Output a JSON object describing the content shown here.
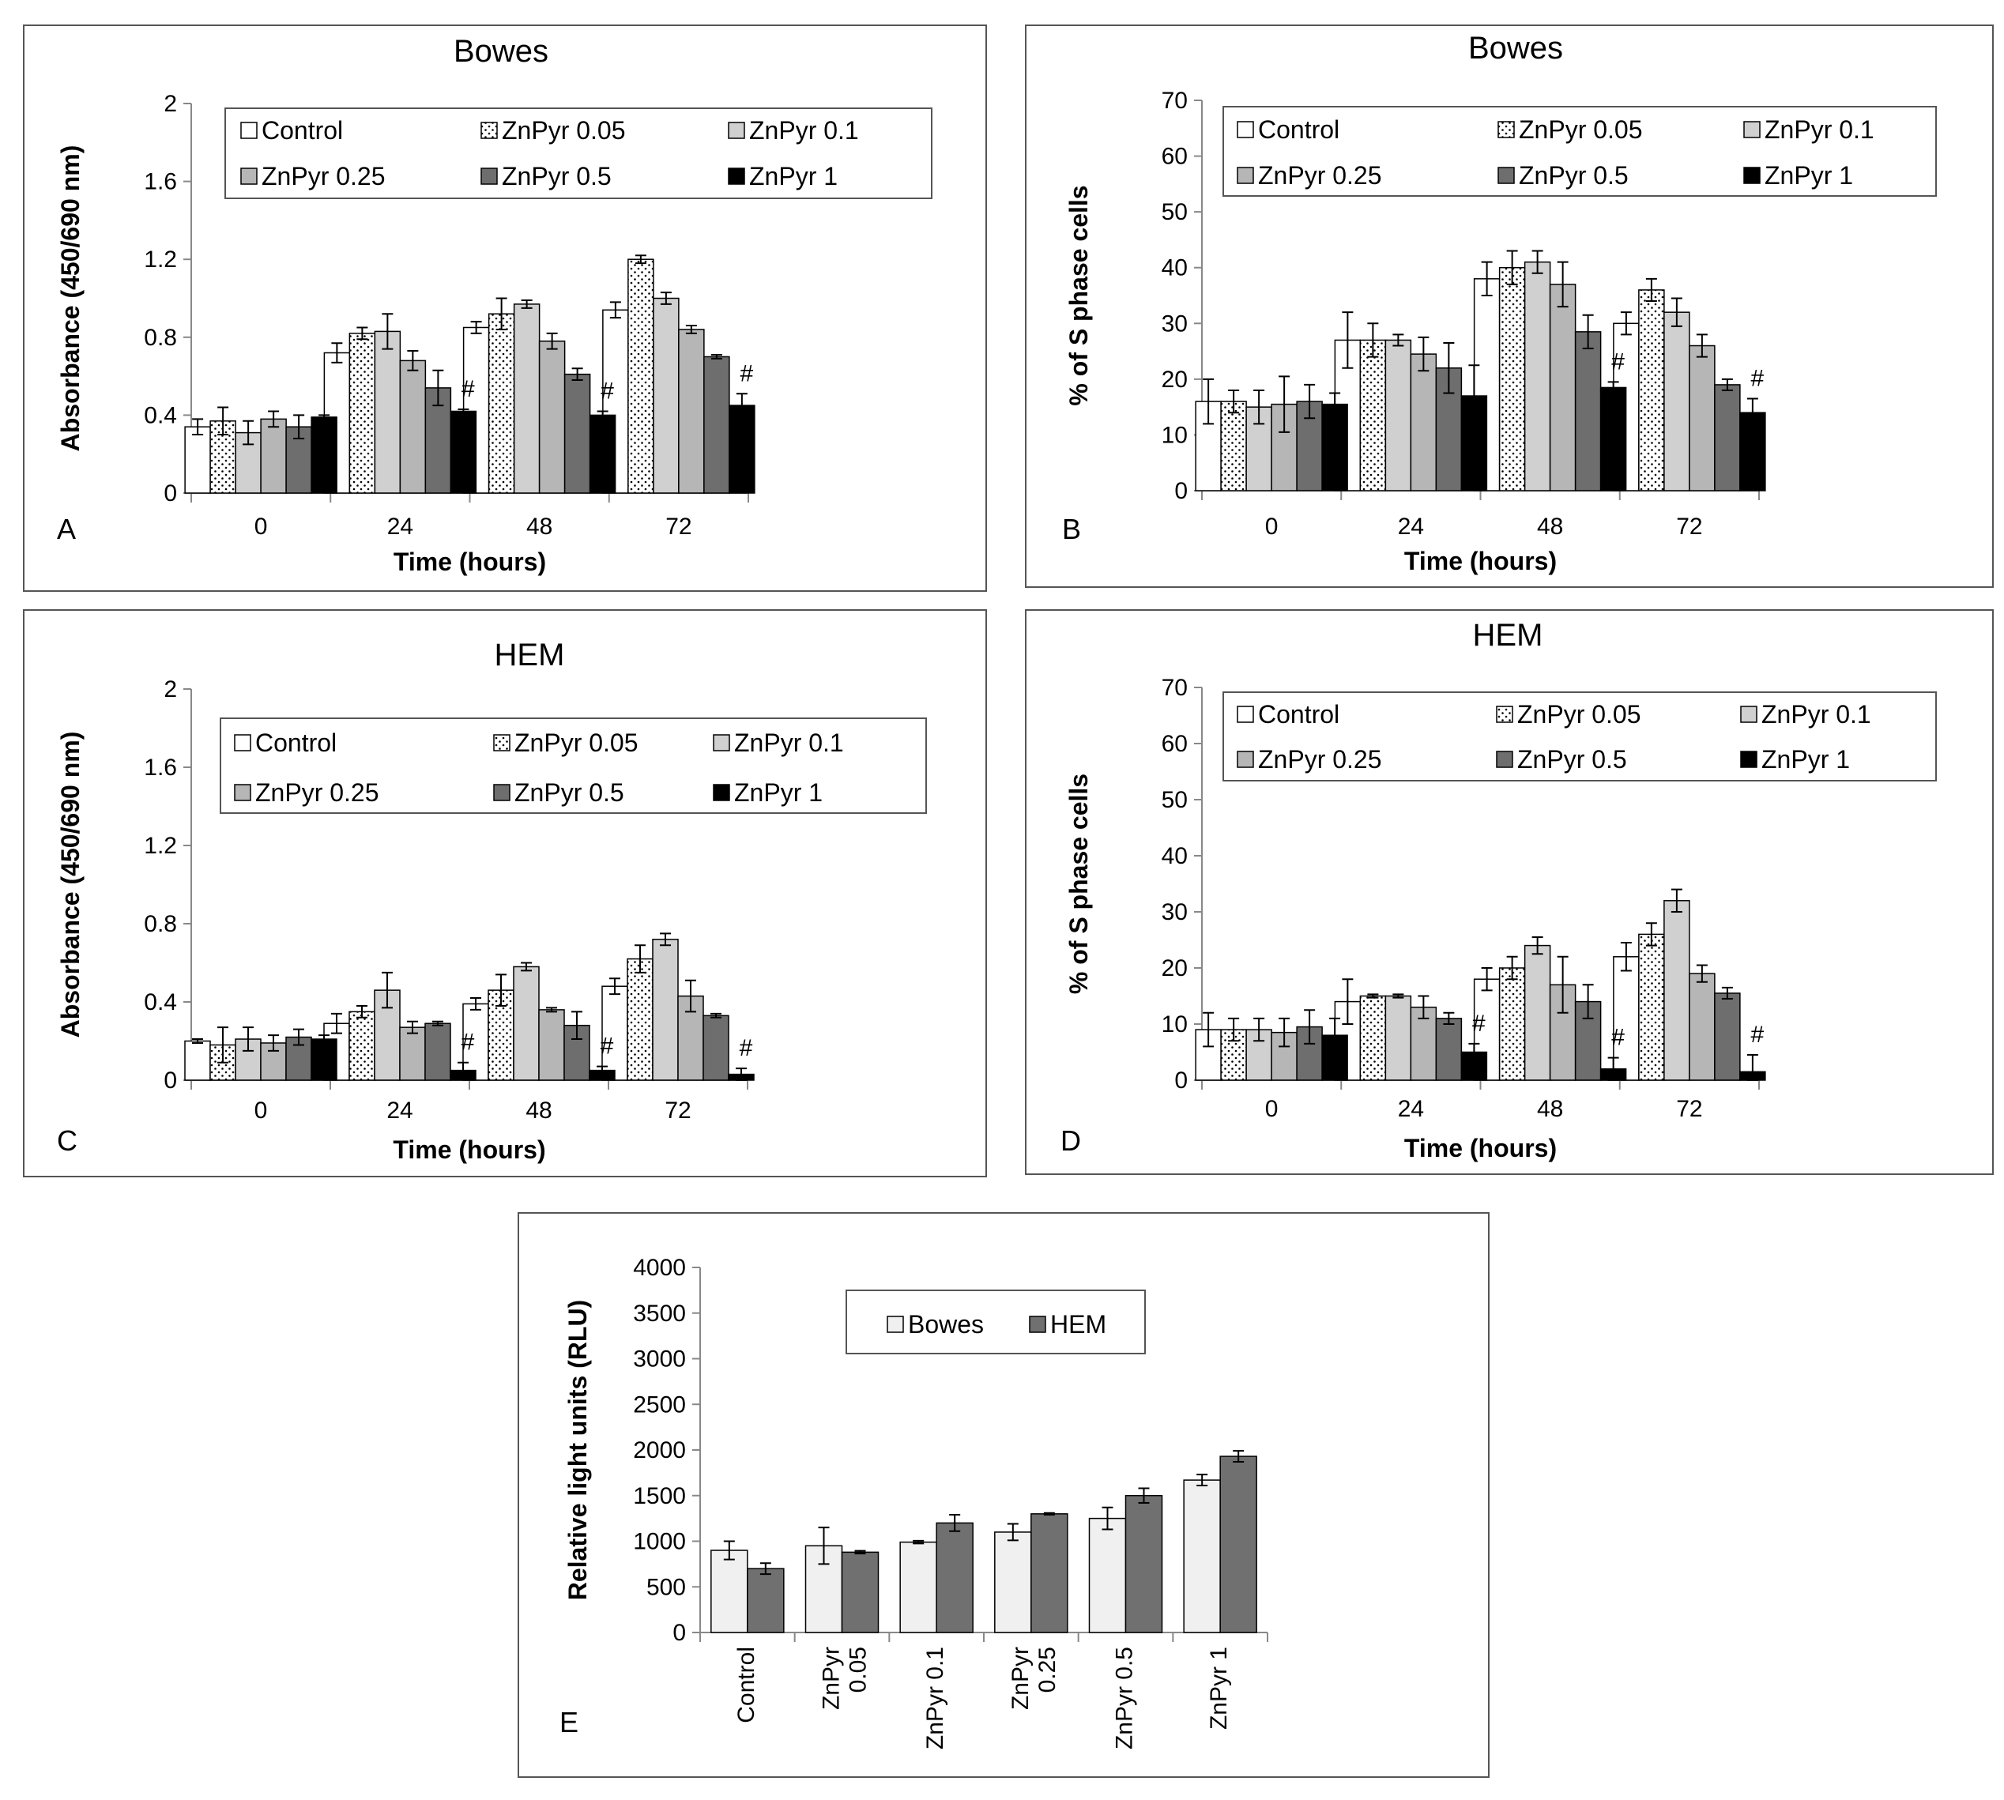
{
  "colors": {
    "Control": "#ffffff",
    "ZnPyr 0.05": "dotted",
    "ZnPyr 0.1": "#d0d0d0",
    "ZnPyr 0.25": "#b6b6b6",
    "ZnPyr 0.5": "#6e6e6e",
    "ZnPyr 1": "#000000",
    "Bowes": "#f0f0f0",
    "HEM": "#707070"
  },
  "chart_data": [
    {
      "id": "A",
      "type": "bar",
      "title": "Bowes",
      "panel_letter": "A",
      "xlabel": "Time (hours)",
      "ylabel": "Absorbance (450/690 nm)",
      "ylim": [
        0,
        2
      ],
      "yticks": [
        "0",
        "0.4",
        "0.8",
        "1.2",
        "1.6",
        "2"
      ],
      "categories": [
        "0",
        "24",
        "48",
        "72"
      ],
      "legend_cols": 3,
      "series": [
        {
          "name": "Control",
          "values": [
            0.34,
            0.72,
            0.85,
            0.94
          ],
          "errors": [
            0.04,
            0.05,
            0.03,
            0.04
          ]
        },
        {
          "name": "ZnPyr 0.05",
          "values": [
            0.37,
            0.82,
            0.92,
            1.2
          ],
          "errors": [
            0.07,
            0.03,
            0.08,
            0.02
          ]
        },
        {
          "name": "ZnPyr 0.1",
          "values": [
            0.31,
            0.83,
            0.97,
            1.0
          ],
          "errors": [
            0.06,
            0.09,
            0.02,
            0.03
          ]
        },
        {
          "name": "ZnPyr 0.25",
          "values": [
            0.38,
            0.68,
            0.78,
            0.84
          ],
          "errors": [
            0.04,
            0.05,
            0.04,
            0.02
          ]
        },
        {
          "name": "ZnPyr 0.5",
          "values": [
            0.34,
            0.54,
            0.61,
            0.7
          ],
          "errors": [
            0.06,
            0.09,
            0.03,
            0.01
          ]
        },
        {
          "name": "ZnPyr 1",
          "values": [
            0.39,
            0.42,
            0.4,
            0.45
          ],
          "errors": [
            0.01,
            0.01,
            0.02,
            0.06
          ]
        }
      ],
      "annotations": [
        {
          "text": "#",
          "category": "24"
        },
        {
          "text": "#",
          "category": "48"
        },
        {
          "text": "#",
          "category": "72"
        }
      ]
    },
    {
      "id": "B",
      "type": "bar",
      "title": "Bowes",
      "panel_letter": "B",
      "xlabel": "Time (hours)",
      "ylabel": "% of S phase cells",
      "ylim": [
        0,
        70
      ],
      "yticks": [
        "0",
        "10",
        "20",
        "30",
        "40",
        "50",
        "60",
        "70"
      ],
      "categories": [
        "0",
        "24",
        "48",
        "72"
      ],
      "legend_cols": 3,
      "series": [
        {
          "name": "Control",
          "values": [
            16,
            27,
            38,
            30
          ],
          "errors": [
            4,
            5,
            3,
            2
          ]
        },
        {
          "name": "ZnPyr 0.05",
          "values": [
            16,
            27,
            40,
            36
          ],
          "errors": [
            2,
            3,
            3,
            2
          ]
        },
        {
          "name": "ZnPyr 0.1",
          "values": [
            15,
            27,
            41,
            32
          ],
          "errors": [
            3,
            1,
            2,
            2.5
          ]
        },
        {
          "name": "ZnPyr 0.25",
          "values": [
            15.5,
            24.5,
            37,
            26
          ],
          "errors": [
            5,
            3,
            4,
            2
          ]
        },
        {
          "name": "ZnPyr 0.5",
          "values": [
            16,
            22,
            28.5,
            19
          ],
          "errors": [
            3,
            4.5,
            3,
            1
          ]
        },
        {
          "name": "ZnPyr 1",
          "values": [
            15.5,
            17,
            18.5,
            14
          ],
          "errors": [
            2,
            5.5,
            1,
            2.5
          ]
        }
      ],
      "annotations": [
        {
          "text": "#",
          "category": "48"
        },
        {
          "text": "#",
          "category": "72"
        }
      ]
    },
    {
      "id": "C",
      "type": "bar",
      "title": "HEM",
      "panel_letter": "C",
      "xlabel": "Time (hours)",
      "ylabel": "Absorbance (450/690 nm)",
      "ylim": [
        0,
        2
      ],
      "yticks": [
        "0",
        "0.4",
        "0.8",
        "1.2",
        "1.6",
        "2"
      ],
      "categories": [
        "0",
        "24",
        "48",
        "72"
      ],
      "legend_cols": 3,
      "series": [
        {
          "name": "Control",
          "values": [
            0.2,
            0.29,
            0.39,
            0.48
          ],
          "errors": [
            0.01,
            0.05,
            0.03,
            0.04
          ]
        },
        {
          "name": "ZnPyr 0.05",
          "values": [
            0.18,
            0.35,
            0.46,
            0.62
          ],
          "errors": [
            0.09,
            0.03,
            0.08,
            0.07
          ]
        },
        {
          "name": "ZnPyr 0.1",
          "values": [
            0.21,
            0.46,
            0.58,
            0.72
          ],
          "errors": [
            0.06,
            0.09,
            0.02,
            0.03
          ]
        },
        {
          "name": "ZnPyr 0.25",
          "values": [
            0.19,
            0.27,
            0.36,
            0.43
          ],
          "errors": [
            0.04,
            0.03,
            0.01,
            0.08
          ]
        },
        {
          "name": "ZnPyr 0.5",
          "values": [
            0.22,
            0.29,
            0.28,
            0.33
          ],
          "errors": [
            0.04,
            0.01,
            0.07,
            0.01
          ]
        },
        {
          "name": "ZnPyr 1",
          "values": [
            0.21,
            0.05,
            0.05,
            0.03
          ],
          "errors": [
            0.02,
            0.04,
            0.02,
            0.03
          ]
        }
      ],
      "annotations": [
        {
          "text": "#",
          "category": "24"
        },
        {
          "text": "#",
          "category": "48"
        },
        {
          "text": "#",
          "category": "72"
        }
      ]
    },
    {
      "id": "D",
      "type": "bar",
      "title": "HEM",
      "panel_letter": "D",
      "xlabel": "Time (hours)",
      "ylabel": "% of S phase cells",
      "ylim": [
        0,
        70
      ],
      "yticks": [
        "0",
        "10",
        "20",
        "30",
        "40",
        "50",
        "60",
        "70"
      ],
      "categories": [
        "0",
        "24",
        "48",
        "72"
      ],
      "legend_cols": 3,
      "series": [
        {
          "name": "Control",
          "values": [
            9,
            14,
            18,
            22
          ],
          "errors": [
            3,
            4,
            2,
            2.5
          ]
        },
        {
          "name": "ZnPyr 0.05",
          "values": [
            9,
            15,
            20,
            26
          ],
          "errors": [
            2,
            0.3,
            2,
            2
          ]
        },
        {
          "name": "ZnPyr 0.1",
          "values": [
            9,
            15,
            24,
            32
          ],
          "errors": [
            2,
            0.3,
            1.5,
            2
          ]
        },
        {
          "name": "ZnPyr 0.25",
          "values": [
            8.5,
            13,
            17,
            19
          ],
          "errors": [
            2.5,
            2,
            5,
            1.5
          ]
        },
        {
          "name": "ZnPyr 0.5",
          "values": [
            9.5,
            11,
            14,
            15.5
          ],
          "errors": [
            3,
            1,
            3,
            1
          ]
        },
        {
          "name": "ZnPyr 1",
          "values": [
            8,
            5,
            2,
            1.5
          ],
          "errors": [
            3,
            1.5,
            2,
            3
          ]
        }
      ],
      "annotations": [
        {
          "text": "#",
          "category": "24"
        },
        {
          "text": "#",
          "category": "48"
        },
        {
          "text": "#",
          "category": "72"
        }
      ]
    },
    {
      "id": "E",
      "type": "bar",
      "title": "",
      "panel_letter": "E",
      "xlabel": "",
      "ylabel": "Relative light units (RLU)",
      "ylim": [
        0,
        4000
      ],
      "yticks": [
        "0",
        "500",
        "1000",
        "1500",
        "2000",
        "2500",
        "3000",
        "3500",
        "4000"
      ],
      "categories": [
        [
          "Control"
        ],
        [
          "ZnPyr",
          "0.05"
        ],
        [
          "ZnPyr 0.1"
        ],
        [
          "ZnPyr",
          "0.25"
        ],
        [
          "ZnPyr 0.5"
        ],
        [
          "ZnPyr 1"
        ]
      ],
      "legend_cols": 2,
      "series": [
        {
          "name": "Bowes",
          "values": [
            900,
            950,
            990,
            1100,
            1250,
            1670
          ],
          "errors": [
            100,
            200,
            15,
            90,
            120,
            60
          ]
        },
        {
          "name": "HEM",
          "values": [
            700,
            880,
            1200,
            1300,
            1500,
            1930
          ],
          "errors": [
            60,
            15,
            90,
            10,
            80,
            60
          ]
        }
      ],
      "annotations": []
    }
  ]
}
